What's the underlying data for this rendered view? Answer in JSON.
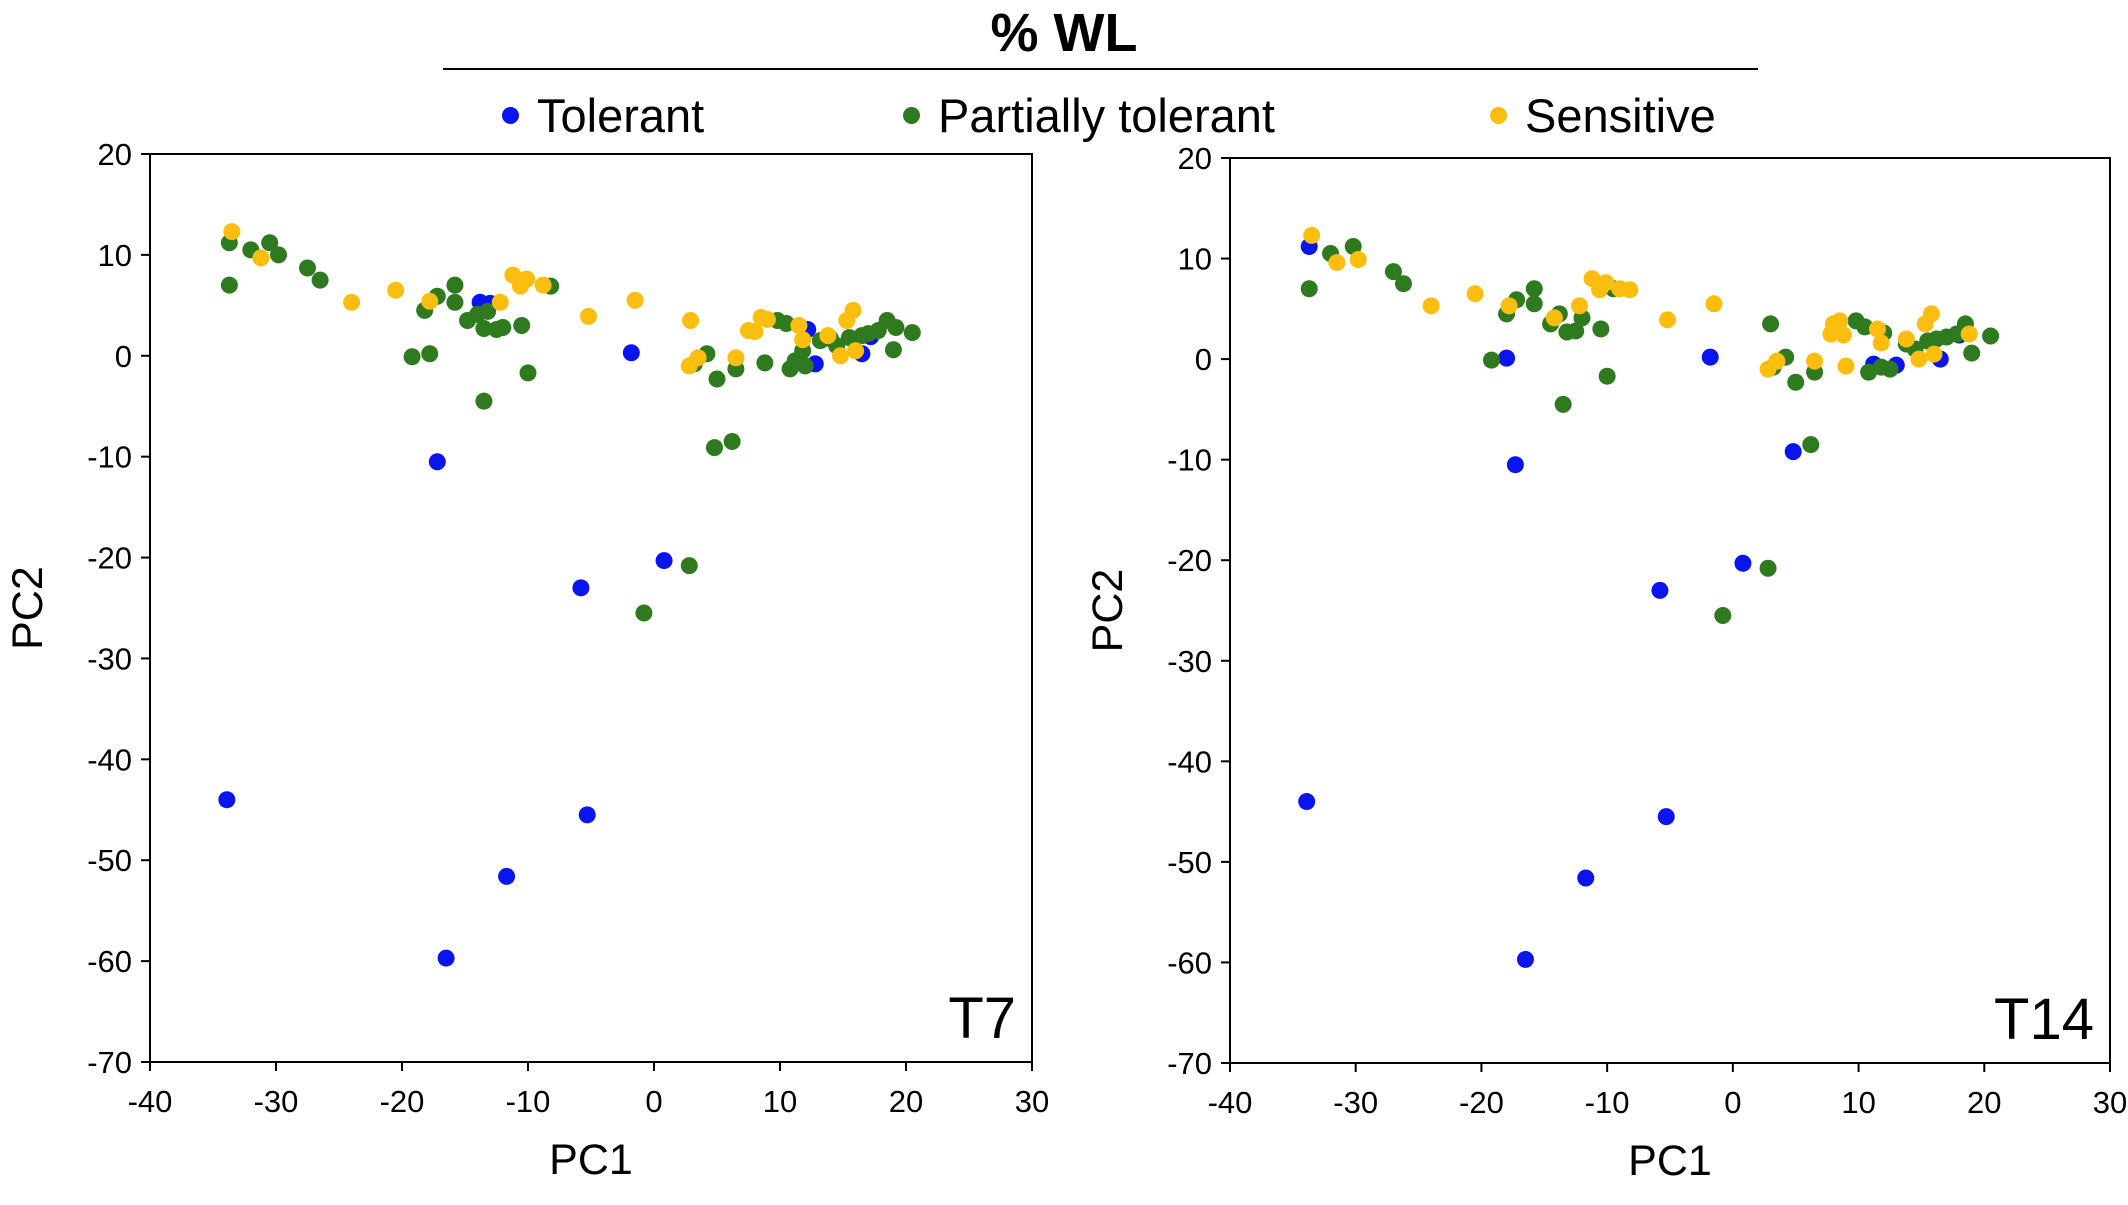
{
  "title": "% WL",
  "legend": {
    "items": [
      {
        "name": "Tolerant",
        "color": "#0a14ef"
      },
      {
        "name": "Partially tolerant",
        "color": "#2f7a1f"
      },
      {
        "name": "Sensitive",
        "color": "#fbbd0e"
      }
    ]
  },
  "chart_data": [
    {
      "type": "scatter",
      "panel_label": "T7",
      "xlabel": "PC1",
      "ylabel": "PC2",
      "xlim": [
        -40,
        30
      ],
      "ylim": [
        -70,
        20
      ],
      "xticks": [
        -40,
        -30,
        -20,
        -10,
        0,
        10,
        20,
        30
      ],
      "yticks": [
        20,
        10,
        0,
        -10,
        -20,
        -30,
        -40,
        -50,
        -60,
        -70
      ],
      "grid": false,
      "series": [
        {
          "name": "Tolerant",
          "points": [
            [
              -33.9,
              -44.0
            ],
            [
              -17.2,
              -10.5
            ],
            [
              -16.5,
              -59.7
            ],
            [
              -13.8,
              5.3
            ],
            [
              -13.0,
              5.2
            ],
            [
              -11.7,
              -51.6
            ],
            [
              -5.8,
              -23.0
            ],
            [
              -5.3,
              -45.5
            ],
            [
              -1.8,
              0.3
            ],
            [
              0.8,
              -20.3
            ],
            [
              12.2,
              2.6
            ],
            [
              12.8,
              -0.8
            ],
            [
              16.5,
              0.2
            ],
            [
              17.2,
              1.9
            ]
          ]
        },
        {
          "name": "Partially tolerant",
          "points": [
            [
              -33.7,
              7.0
            ],
            [
              -33.7,
              11.2
            ],
            [
              -32.0,
              10.5
            ],
            [
              -30.5,
              11.2
            ],
            [
              -29.8,
              10.0
            ],
            [
              -27.5,
              8.7
            ],
            [
              -26.5,
              7.5
            ],
            [
              -19.2,
              -0.1
            ],
            [
              -18.2,
              4.5
            ],
            [
              -17.8,
              0.2
            ],
            [
              -17.2,
              5.9
            ],
            [
              -15.8,
              5.3
            ],
            [
              -15.8,
              7.0
            ],
            [
              -14.8,
              3.5
            ],
            [
              -14.0,
              4.1
            ],
            [
              -13.5,
              -4.5
            ],
            [
              -13.5,
              2.7
            ],
            [
              -13.2,
              4.4
            ],
            [
              -12.5,
              2.6
            ],
            [
              -12.0,
              2.8
            ],
            [
              -10.5,
              3.0
            ],
            [
              -10.0,
              -1.7
            ],
            [
              -8.2,
              6.9
            ],
            [
              -0.8,
              -25.5
            ],
            [
              2.8,
              -20.8
            ],
            [
              3.2,
              -0.8
            ],
            [
              4.2,
              0.2
            ],
            [
              4.8,
              -9.1
            ],
            [
              5.0,
              -2.3
            ],
            [
              6.2,
              -8.5
            ],
            [
              6.5,
              -1.3
            ],
            [
              8.8,
              -0.7
            ],
            [
              9.8,
              3.5
            ],
            [
              10.5,
              3.2
            ],
            [
              10.8,
              -1.3
            ],
            [
              11.2,
              -0.5
            ],
            [
              11.8,
              0.5
            ],
            [
              12.0,
              -1.0
            ],
            [
              13.2,
              1.5
            ],
            [
              14.0,
              1.7
            ],
            [
              14.5,
              1.0
            ],
            [
              15.5,
              1.8
            ],
            [
              16.5,
              2.0
            ],
            [
              17.0,
              2.2
            ],
            [
              17.8,
              2.5
            ],
            [
              18.5,
              3.5
            ],
            [
              19.0,
              0.6
            ],
            [
              19.2,
              2.8
            ],
            [
              20.5,
              2.3
            ]
          ]
        },
        {
          "name": "Sensitive",
          "points": [
            [
              -33.5,
              12.3
            ],
            [
              -31.2,
              9.7
            ],
            [
              -24.0,
              5.3
            ],
            [
              -20.5,
              6.5
            ],
            [
              -17.8,
              5.4
            ],
            [
              -12.2,
              5.3
            ],
            [
              -11.2,
              8.0
            ],
            [
              -10.6,
              6.9
            ],
            [
              -10.1,
              7.6
            ],
            [
              -8.8,
              7.0
            ],
            [
              -5.2,
              3.9
            ],
            [
              -1.5,
              5.5
            ],
            [
              2.8,
              -1.0
            ],
            [
              2.9,
              3.5
            ],
            [
              3.5,
              -0.2
            ],
            [
              6.5,
              -0.2
            ],
            [
              7.5,
              2.5
            ],
            [
              8.0,
              2.4
            ],
            [
              8.5,
              3.8
            ],
            [
              9.0,
              3.6
            ],
            [
              11.5,
              3.0
            ],
            [
              11.8,
              1.6
            ],
            [
              13.8,
              2.0
            ],
            [
              14.8,
              0.0
            ],
            [
              15.3,
              3.5
            ],
            [
              15.8,
              4.5
            ],
            [
              16.0,
              0.5
            ]
          ]
        }
      ]
    },
    {
      "type": "scatter",
      "panel_label": "T14",
      "xlabel": "PC1",
      "ylabel": "PC2",
      "xlim": [
        -40,
        30
      ],
      "ylim": [
        -70,
        20
      ],
      "xticks": [
        -40,
        -30,
        -20,
        -10,
        0,
        10,
        20,
        30
      ],
      "yticks": [
        20,
        10,
        0,
        -10,
        -20,
        -30,
        -40,
        -50,
        -60,
        -70
      ],
      "grid": false,
      "series": [
        {
          "name": "Tolerant",
          "points": [
            [
              -33.7,
              11.2
            ],
            [
              -33.9,
              -44.0
            ],
            [
              -18.0,
              0.1
            ],
            [
              -17.3,
              -10.5
            ],
            [
              -16.5,
              -59.7
            ],
            [
              -11.7,
              -51.6
            ],
            [
              -10.0,
              7.3
            ],
            [
              -5.8,
              -23.0
            ],
            [
              -5.3,
              -45.5
            ],
            [
              -1.8,
              0.2
            ],
            [
              0.8,
              -20.3
            ],
            [
              4.8,
              -9.2
            ],
            [
              11.2,
              -0.5
            ],
            [
              13.0,
              -0.6
            ],
            [
              16.5,
              0.0
            ],
            [
              18.0,
              2.4
            ]
          ]
        },
        {
          "name": "Partially tolerant",
          "points": [
            [
              -33.7,
              7.0
            ],
            [
              -32.0,
              10.5
            ],
            [
              -30.2,
              11.2
            ],
            [
              -27.0,
              8.7
            ],
            [
              -26.2,
              7.5
            ],
            [
              -19.2,
              -0.1
            ],
            [
              -18.0,
              4.5
            ],
            [
              -17.2,
              5.9
            ],
            [
              -15.8,
              5.5
            ],
            [
              -15.8,
              7.0
            ],
            [
              -14.5,
              3.5
            ],
            [
              -13.8,
              4.5
            ],
            [
              -13.5,
              -4.5
            ],
            [
              -13.2,
              2.7
            ],
            [
              -12.5,
              2.8
            ],
            [
              -12.0,
              4.1
            ],
            [
              -10.5,
              3.0
            ],
            [
              -10.0,
              -1.7
            ],
            [
              -9.5,
              7.0
            ],
            [
              -0.8,
              -25.5
            ],
            [
              2.8,
              -20.8
            ],
            [
              3.0,
              3.5
            ],
            [
              3.2,
              -0.8
            ],
            [
              4.2,
              0.2
            ],
            [
              5.0,
              -2.3
            ],
            [
              6.2,
              -8.5
            ],
            [
              6.5,
              -1.3
            ],
            [
              9.8,
              3.8
            ],
            [
              10.5,
              3.2
            ],
            [
              10.8,
              -1.3
            ],
            [
              11.8,
              -0.8
            ],
            [
              12.0,
              2.6
            ],
            [
              12.5,
              -1.0
            ],
            [
              13.8,
              1.5
            ],
            [
              14.5,
              1.0
            ],
            [
              15.5,
              1.8
            ],
            [
              16.2,
              2.0
            ],
            [
              17.0,
              2.2
            ],
            [
              17.8,
              2.5
            ],
            [
              18.5,
              3.5
            ],
            [
              19.0,
              0.6
            ],
            [
              20.5,
              2.3
            ]
          ]
        },
        {
          "name": "Sensitive",
          "points": [
            [
              -33.5,
              12.3
            ],
            [
              -31.5,
              9.6
            ],
            [
              -29.8,
              9.9
            ],
            [
              -24.0,
              5.3
            ],
            [
              -20.5,
              6.5
            ],
            [
              -17.8,
              5.3
            ],
            [
              -14.2,
              4.1
            ],
            [
              -12.2,
              5.3
            ],
            [
              -11.2,
              8.0
            ],
            [
              -10.6,
              6.9
            ],
            [
              -10.1,
              7.6
            ],
            [
              -9.0,
              7.0
            ],
            [
              -8.2,
              6.9
            ],
            [
              -5.2,
              3.9
            ],
            [
              -1.5,
              5.5
            ],
            [
              2.8,
              -1.0
            ],
            [
              3.5,
              -0.2
            ],
            [
              6.5,
              -0.2
            ],
            [
              7.8,
              2.5
            ],
            [
              8.0,
              3.5
            ],
            [
              8.5,
              3.8
            ],
            [
              8.8,
              2.4
            ],
            [
              9.0,
              -0.7
            ],
            [
              11.5,
              3.0
            ],
            [
              11.8,
              1.6
            ],
            [
              13.8,
              2.0
            ],
            [
              14.8,
              0.0
            ],
            [
              15.3,
              3.5
            ],
            [
              15.8,
              4.5
            ],
            [
              16.0,
              0.5
            ],
            [
              18.8,
              2.5
            ]
          ]
        }
      ]
    }
  ]
}
